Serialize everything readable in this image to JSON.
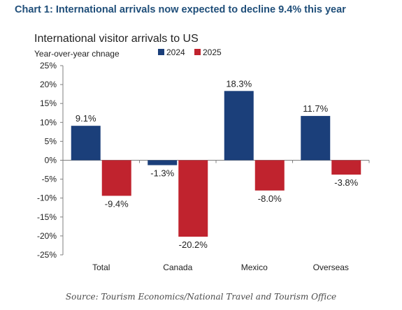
{
  "header": {
    "heading": "Chart 1: International arrivals now expected to decline 9.4% this year"
  },
  "footer": {
    "source": "Source: Tourism Economics/National Travel and Tourism Office"
  },
  "colors": {
    "heading": "#1f4e79",
    "series_2024": "#1b3f7a",
    "series_2025": "#c0232e",
    "axis": "#7f7f7f",
    "text": "#222222"
  },
  "chart_data": {
    "type": "bar",
    "title": "International visitor arrivals to US",
    "ylabel": "Year-over-year chnage",
    "xlabel": "",
    "categories": [
      "Total",
      "Canada",
      "Mexico",
      "Overseas"
    ],
    "series": [
      {
        "name": "2024",
        "values": [
          9.1,
          -1.3,
          18.3,
          11.7
        ],
        "labels": [
          "9.1%",
          "-1.3%",
          "18.3%",
          "11.7%"
        ]
      },
      {
        "name": "2025",
        "values": [
          -9.4,
          -20.2,
          -8.0,
          -3.8
        ],
        "labels": [
          "-9.4%",
          "-20.2%",
          "-8.0%",
          "-3.8%"
        ]
      }
    ],
    "ylim": [
      -25,
      25
    ],
    "yticks": [
      25,
      20,
      15,
      10,
      5,
      0,
      -5,
      -10,
      -15,
      -20,
      -25
    ],
    "ytick_labels": [
      "25%",
      "20%",
      "15%",
      "10%",
      "5%",
      "0%",
      "-5%",
      "-10%",
      "-15%",
      "-20%",
      "-25%"
    ],
    "grid": false,
    "legend_position": "top"
  }
}
